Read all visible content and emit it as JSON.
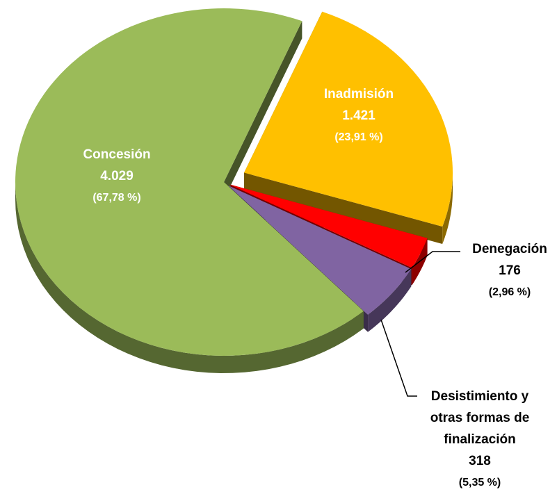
{
  "chart_data": {
    "type": "pie",
    "categories": [
      "Inadmisión",
      "Denegación",
      "Desistimiento y otras formas de finalización",
      "Concesión"
    ],
    "values": [
      1421,
      176,
      318,
      4029
    ],
    "value_labels": [
      "1.421",
      "176",
      "318",
      "4.029"
    ],
    "percentages": [
      23.91,
      2.96,
      5.35,
      67.78
    ],
    "percentage_labels": [
      "(23,91 %)",
      "(2,96 %)",
      "(5,35 %)",
      "(67,78 %)"
    ],
    "colors": [
      "#ffc000",
      "#ff0000",
      "#8064a2",
      "#9bbb59"
    ]
  }
}
